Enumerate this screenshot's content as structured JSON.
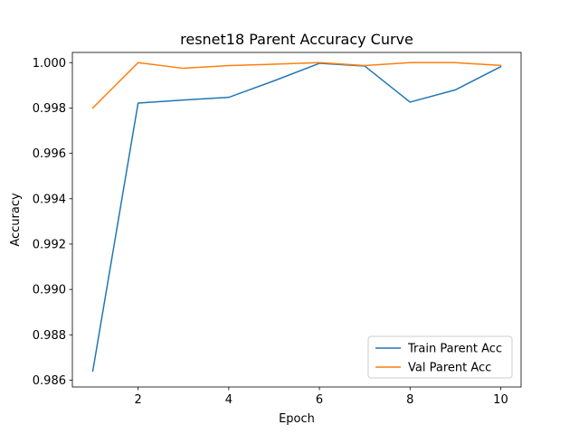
{
  "chart_data": {
    "type": "line",
    "title": "resnet18 Parent Accuracy Curve",
    "xlabel": "Epoch",
    "ylabel": "Accuracy",
    "x": [
      1,
      2,
      3,
      4,
      5,
      6,
      7,
      8,
      9,
      10
    ],
    "xlim": [
      0.55,
      10.45
    ],
    "ylim": [
      0.9857,
      1.00045
    ],
    "xticks": [
      2,
      4,
      6,
      8,
      10
    ],
    "xtick_labels": [
      "2",
      "4",
      "6",
      "8",
      "10"
    ],
    "yticks": [
      0.986,
      0.988,
      0.99,
      0.992,
      0.994,
      0.996,
      0.998,
      1.0
    ],
    "ytick_labels": [
      "0.986",
      "0.988",
      "0.990",
      "0.992",
      "0.994",
      "0.996",
      "0.998",
      "1.000"
    ],
    "grid": false,
    "legend_position": "lower-right",
    "series": [
      {
        "name": "Train Parent Acc",
        "color": "#1f77b4",
        "values": [
          0.9864,
          0.99822,
          0.99835,
          0.99847,
          0.9992,
          0.99997,
          0.99985,
          0.99826,
          0.9988,
          0.99982
        ]
      },
      {
        "name": "Val Parent Acc",
        "color": "#ff7f0e",
        "values": [
          0.998,
          1.0,
          0.99975,
          0.99987,
          0.99993,
          1.0,
          0.99987,
          1.0,
          1.0,
          0.99988
        ]
      }
    ]
  }
}
